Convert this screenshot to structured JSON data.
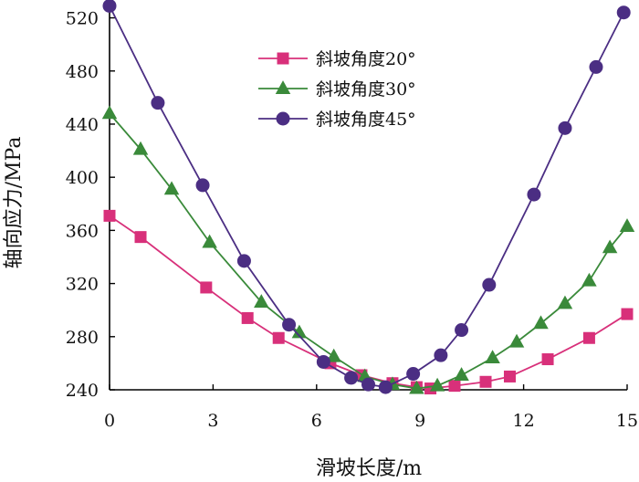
{
  "chart_data": {
    "type": "line",
    "title": "",
    "xlabel": "滑坡长度/m",
    "ylabel": "轴向应力/MPa",
    "xlim": [
      0,
      15
    ],
    "ylim": [
      240,
      530
    ],
    "x_ticks": [
      0,
      3,
      6,
      9,
      12,
      15
    ],
    "y_ticks": [
      240,
      280,
      320,
      360,
      400,
      440,
      480,
      520
    ],
    "grid": false,
    "legend_position": "top-center",
    "series": [
      {
        "name": "斜坡角度20°",
        "color": "#d8307a",
        "marker": "square",
        "x": [
          0,
          0.9,
          2.8,
          4.0,
          4.9,
          6.4,
          7.3,
          8.2,
          8.9,
          9.3,
          10.0,
          10.9,
          11.6,
          12.7,
          13.9,
          15.0
        ],
        "y": [
          371,
          355,
          317,
          294,
          279,
          260,
          251,
          245,
          242,
          241,
          243,
          246,
          250,
          263,
          279,
          297
        ]
      },
      {
        "name": "斜坡角度30°",
        "color": "#3a8a3a",
        "marker": "triangle",
        "x": [
          0,
          0.9,
          1.8,
          2.9,
          4.4,
          5.5,
          6.5,
          7.4,
          8.2,
          8.9,
          9.5,
          10.2,
          11.1,
          11.8,
          12.5,
          13.2,
          13.9,
          14.5,
          15.0
        ],
        "y": [
          448,
          421,
          391,
          351,
          306,
          283,
          265,
          250,
          244,
          241,
          243,
          251,
          264,
          276,
          290,
          305,
          322,
          347,
          363
        ]
      },
      {
        "name": "斜坡角度45°",
        "color": "#4b2e83",
        "marker": "circle",
        "x": [
          0,
          1.4,
          2.7,
          3.9,
          5.2,
          6.2,
          7.0,
          7.5,
          8.0,
          8.8,
          9.6,
          10.2,
          11.0,
          12.3,
          13.2,
          14.1,
          14.9
        ],
        "y": [
          529,
          456,
          394,
          337,
          289,
          261,
          249,
          244,
          242,
          252,
          266,
          285,
          319,
          387,
          437,
          483,
          524
        ]
      }
    ]
  }
}
